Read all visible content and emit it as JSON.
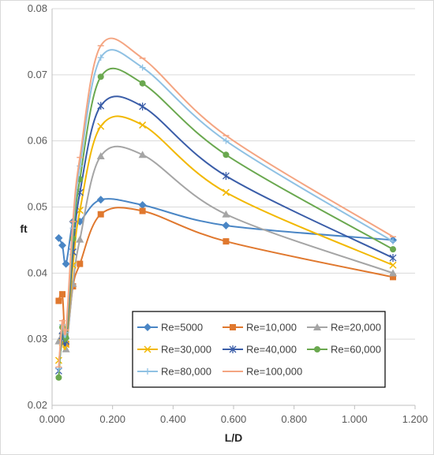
{
  "chart_data": {
    "type": "scatter",
    "xlabel": "L/D",
    "ylabel": "ft",
    "xlim": [
      0,
      1.2
    ],
    "ylim": [
      0.02,
      0.08
    ],
    "x_ticks": [
      "0.000",
      "0.200",
      "0.400",
      "0.600",
      "0.800",
      "1.000",
      "1.200"
    ],
    "y_ticks": [
      "0.02",
      "0.03",
      "0.04",
      "0.05",
      "0.06",
      "0.07",
      "0.08"
    ],
    "grid": "horizontal",
    "legend_position": "bottom-right",
    "series": [
      {
        "name": "Re=5000",
        "color": "#4a86c5",
        "marker": "diamond",
        "points": [
          [
            0.022,
            0.0453
          ],
          [
            0.034,
            0.0442
          ],
          [
            0.046,
            0.0414
          ],
          [
            0.069,
            0.0478
          ],
          [
            0.092,
            0.0478
          ],
          [
            0.161,
            0.0511
          ],
          [
            0.299,
            0.0503
          ],
          [
            0.575,
            0.0472
          ],
          [
            1.127,
            0.045
          ]
        ]
      },
      {
        "name": "Re=10,000",
        "color": "#e0782e",
        "marker": "square",
        "points": [
          [
            0.022,
            0.0358
          ],
          [
            0.034,
            0.0368
          ],
          [
            0.046,
            0.0293
          ],
          [
            0.069,
            0.038
          ],
          [
            0.092,
            0.0414
          ],
          [
            0.161,
            0.0489
          ],
          [
            0.299,
            0.0494
          ],
          [
            0.575,
            0.0448
          ],
          [
            1.127,
            0.0394
          ]
        ]
      },
      {
        "name": "Re=20,000",
        "color": "#a5a5a5",
        "marker": "triangle",
        "points": [
          [
            0.022,
            0.0297
          ],
          [
            0.034,
            0.0312
          ],
          [
            0.046,
            0.0285
          ],
          [
            0.069,
            0.0384
          ],
          [
            0.092,
            0.0451
          ],
          [
            0.161,
            0.0577
          ],
          [
            0.299,
            0.0579
          ],
          [
            0.575,
            0.0489
          ],
          [
            1.127,
            0.04
          ]
        ]
      },
      {
        "name": "Re=30,000",
        "color": "#f2b800",
        "marker": "x",
        "points": [
          [
            0.022,
            0.0268
          ],
          [
            0.034,
            0.0295
          ],
          [
            0.046,
            0.0292
          ],
          [
            0.069,
            0.0412
          ],
          [
            0.092,
            0.0495
          ],
          [
            0.161,
            0.0622
          ],
          [
            0.299,
            0.0624
          ],
          [
            0.575,
            0.0522
          ],
          [
            1.127,
            0.0412
          ]
        ]
      },
      {
        "name": "Re=40,000",
        "color": "#3a5da8",
        "marker": "star",
        "points": [
          [
            0.022,
            0.0252
          ],
          [
            0.034,
            0.0305
          ],
          [
            0.046,
            0.0297
          ],
          [
            0.069,
            0.0432
          ],
          [
            0.092,
            0.0522
          ],
          [
            0.161,
            0.0653
          ],
          [
            0.299,
            0.0652
          ],
          [
            0.575,
            0.0547
          ],
          [
            1.127,
            0.0423
          ]
        ]
      },
      {
        "name": "Re=60,000",
        "color": "#6aa84f",
        "marker": "circle",
        "points": [
          [
            0.022,
            0.0242
          ],
          [
            0.034,
            0.0318
          ],
          [
            0.046,
            0.0302
          ],
          [
            0.069,
            0.0452
          ],
          [
            0.092,
            0.0542
          ],
          [
            0.161,
            0.0697
          ],
          [
            0.299,
            0.0687
          ],
          [
            0.575,
            0.0579
          ],
          [
            1.127,
            0.0436
          ]
        ]
      },
      {
        "name": "Re=80,000",
        "color": "#8fc1e3",
        "marker": "plus",
        "points": [
          [
            0.022,
            0.0255
          ],
          [
            0.034,
            0.0322
          ],
          [
            0.046,
            0.031
          ],
          [
            0.069,
            0.0468
          ],
          [
            0.092,
            0.0562
          ],
          [
            0.161,
            0.0726
          ],
          [
            0.299,
            0.0711
          ],
          [
            0.575,
            0.06
          ],
          [
            1.127,
            0.0448
          ]
        ]
      },
      {
        "name": "Re=100,000",
        "color": "#f4a582",
        "marker": "dash",
        "points": [
          [
            0.022,
            0.0258
          ],
          [
            0.034,
            0.0328
          ],
          [
            0.046,
            0.0314
          ],
          [
            0.069,
            0.0478
          ],
          [
            0.092,
            0.0575
          ],
          [
            0.161,
            0.0744
          ],
          [
            0.299,
            0.0725
          ],
          [
            0.575,
            0.0608
          ],
          [
            1.127,
            0.0455
          ]
        ]
      }
    ]
  }
}
